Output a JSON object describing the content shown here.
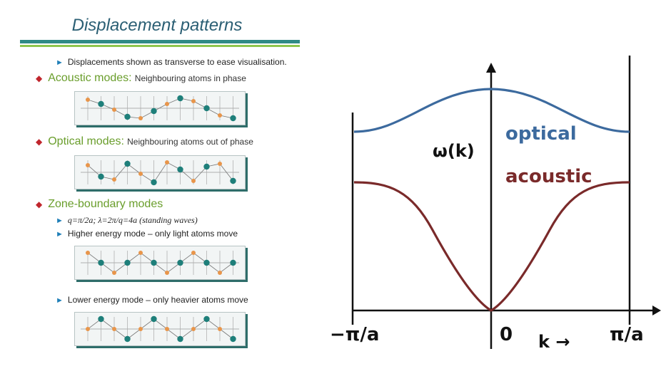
{
  "slide": {
    "title": "Displacement patterns",
    "note": "Displacements shown as transverse to ease visualisation.",
    "acoustic": {
      "heading": "Acoustic modes:",
      "desc": "Neighbouring atoms in phase"
    },
    "optical": {
      "heading": "Optical modes:",
      "desc": "Neighbouring atoms out of phase"
    },
    "zone": {
      "heading": "Zone-boundary modes",
      "sub1": "q=π/2a; λ=2π/q=4a (standing waves)",
      "sub2": "Higher energy mode – only light atoms move",
      "sub3": "Lower energy mode – only heavier atoms move"
    },
    "colors": {
      "heavy_atom": "#1e7f7a",
      "light_atom": "#e8954a",
      "accent_green": "#6a9e2c",
      "title_blue": "#2b5f74"
    }
  },
  "plot": {
    "ylabel": "ω(k)",
    "optical_label": "optical",
    "acoustic_label": "acoustic",
    "xtick_left": "−π/a",
    "xtick_zero": "0",
    "xtick_right": "π/a",
    "xlabel": "k →",
    "colors": {
      "optical": "#3c6a9e",
      "acoustic": "#7a2a2a"
    }
  }
}
